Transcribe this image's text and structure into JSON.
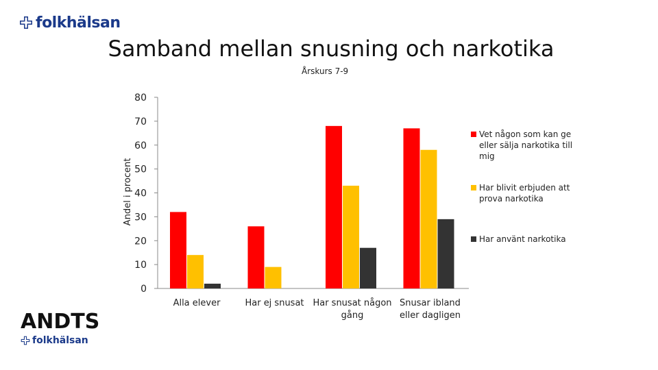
{
  "logo": {
    "brand": "folkhälsan"
  },
  "footer_logo": {
    "andts": "ANDTS",
    "brand": "folkhälsan"
  },
  "chart_data": {
    "type": "bar",
    "title": "Samband mellan snusning och narkotika",
    "subtitle": "Årskurs 7-9",
    "ylabel": "Andel i procent",
    "xlabel": "",
    "ylim": [
      0,
      80
    ],
    "yticks": [
      0,
      10,
      20,
      30,
      40,
      50,
      60,
      70,
      80
    ],
    "categories": [
      "Alla elever",
      "Har ej snusat",
      "Har snusat någon gång",
      "Snusar ibland eller dagligen"
    ],
    "category_lines": [
      [
        "Alla elever"
      ],
      [
        "Har ej snusat"
      ],
      [
        "Har snusat någon",
        "gång"
      ],
      [
        "Snusar ibland",
        "eller dagligen"
      ]
    ],
    "series": [
      {
        "name": "Vet någon som kan ge eller sälja narkotika till mig",
        "name_lines": [
          "Vet någon som kan ge",
          "eller sälja narkotika till",
          "mig"
        ],
        "color": "#ff0000",
        "values": [
          32,
          26,
          68,
          67
        ]
      },
      {
        "name": "Har blivit erbjuden att prova narkotika",
        "name_lines": [
          "Har blivit erbjuden att",
          "prova narkotika"
        ],
        "color": "#ffc000",
        "values": [
          14,
          9,
          43,
          58
        ]
      },
      {
        "name": "Har använt narkotika",
        "name_lines": [
          "Har använt narkotika"
        ],
        "color": "#333333",
        "values": [
          2,
          0,
          17,
          29
        ]
      }
    ],
    "legend": "right",
    "grid": false
  }
}
